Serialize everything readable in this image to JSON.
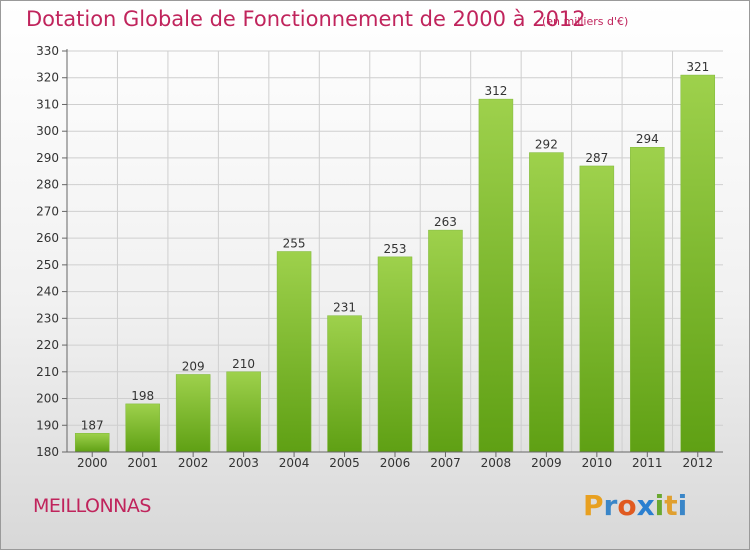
{
  "title": "Dotation Globale de Fonctionnement de 2000 à 2012",
  "subtitle": "(en milliers d'€)",
  "commune": "MEILLONNAS",
  "brand": {
    "letters": [
      "P",
      "r",
      "o",
      "x",
      "i",
      "t",
      "i"
    ],
    "colors": [
      "#e8a020",
      "#3a86c8",
      "#e05a20",
      "#2a7fd0",
      "#6aa830",
      "#e0a030",
      "#3a86c8"
    ]
  },
  "colors": {
    "title": "#c0245c",
    "bar_light": "#9ed14c",
    "bar_dark": "#5fa014",
    "grid": "#cfcfcf"
  },
  "chart_data": {
    "type": "bar",
    "title": "Dotation Globale de Fonctionnement de 2000 à 2012",
    "subtitle": "(en milliers d'€)",
    "categories": [
      "2000",
      "2001",
      "2002",
      "2003",
      "2004",
      "2005",
      "2006",
      "2007",
      "2008",
      "2009",
      "2010",
      "2011",
      "2012"
    ],
    "values": [
      187,
      198,
      209,
      210,
      255,
      231,
      253,
      263,
      312,
      292,
      287,
      294,
      321
    ],
    "ylim": [
      180,
      330
    ],
    "yticks": [
      180,
      190,
      200,
      210,
      220,
      230,
      240,
      250,
      260,
      270,
      280,
      290,
      300,
      310,
      320,
      330
    ],
    "grid": true,
    "data_labels": true
  }
}
